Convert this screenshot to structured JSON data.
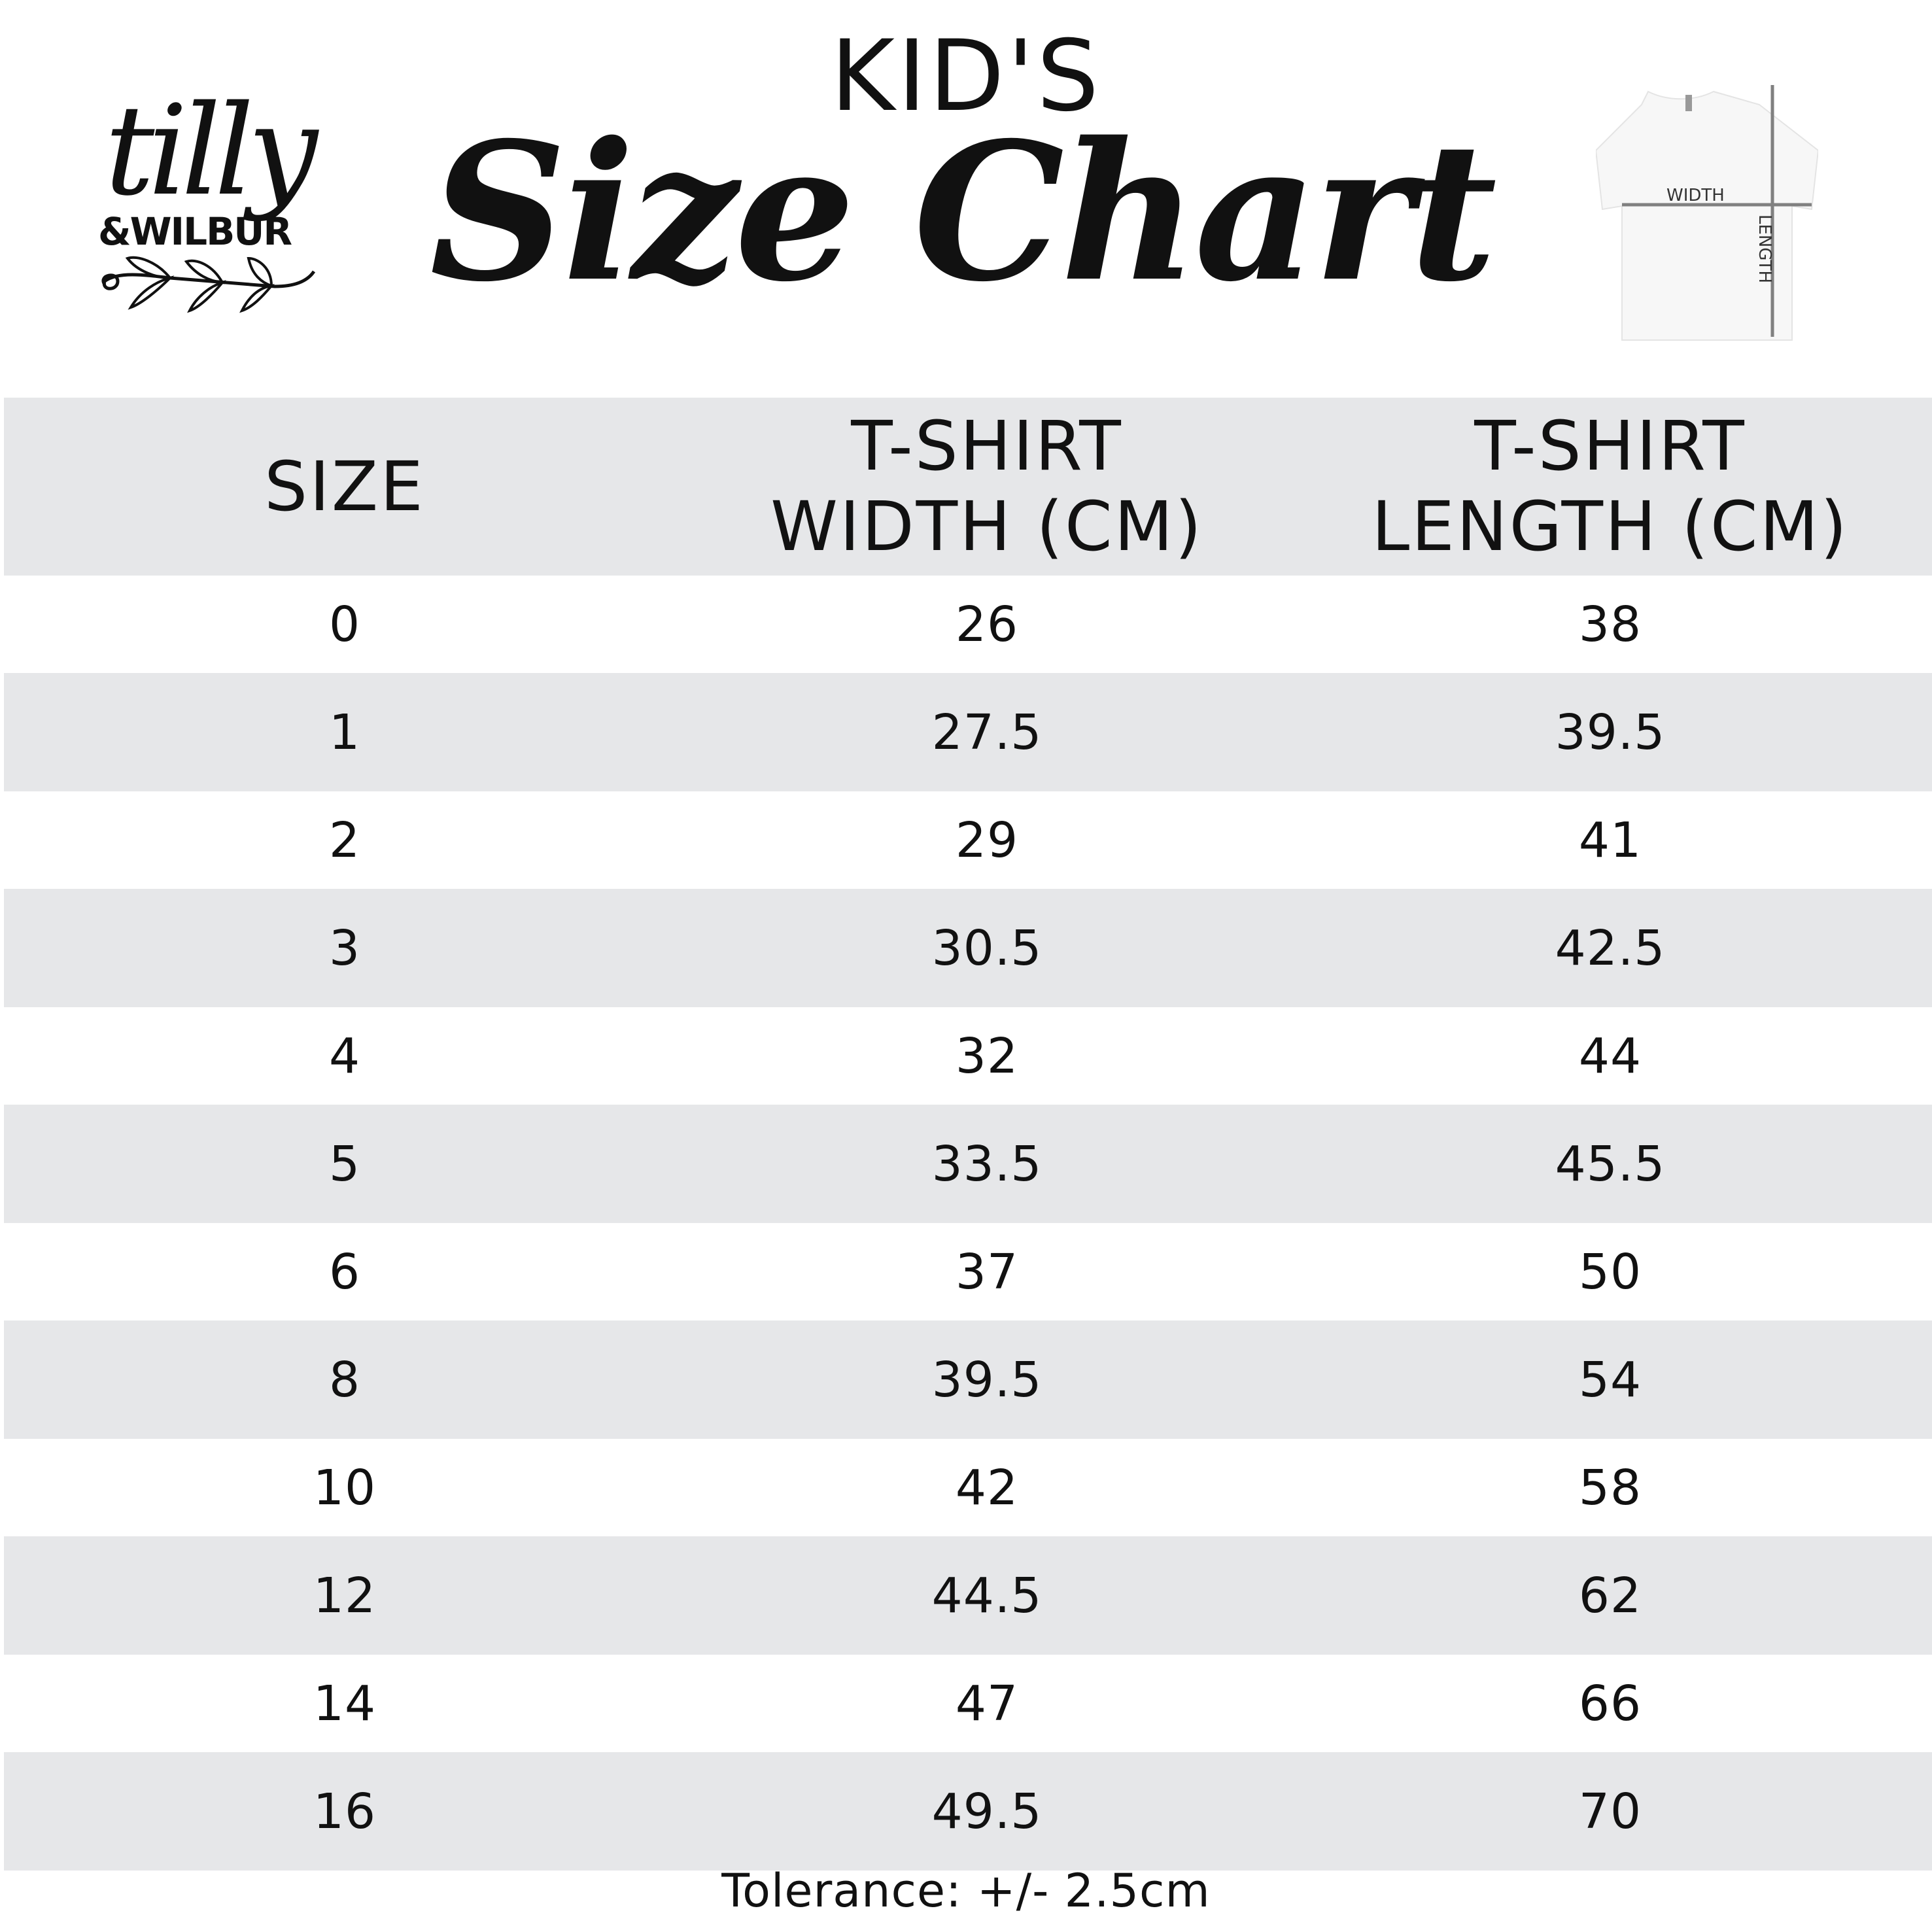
{
  "header": {
    "title": "KID'S",
    "subtitle": "Size Chart"
  },
  "logo": {
    "line1": "tilly",
    "line2": "&WILBUR"
  },
  "diagram": {
    "width_label": "WIDTH",
    "length_label": "LENGTH"
  },
  "table": {
    "columns": [
      "SIZE",
      "T-SHIRT\nWIDTH (CM)",
      "T-SHIRT\nLENGTH (CM)"
    ],
    "col_line1": [
      "SIZE",
      "T-SHIRT",
      "T-SHIRT"
    ],
    "col_line2": [
      "",
      "WIDTH (CM)",
      "LENGTH (CM)"
    ],
    "rows": [
      [
        "0",
        "26",
        "38"
      ],
      [
        "1",
        "27.5",
        "39.5"
      ],
      [
        "2",
        "29",
        "41"
      ],
      [
        "3",
        "30.5",
        "42.5"
      ],
      [
        "4",
        "32",
        "44"
      ],
      [
        "5",
        "33.5",
        "45.5"
      ],
      [
        "6",
        "37",
        "50"
      ],
      [
        "8",
        "39.5",
        "54"
      ],
      [
        "10",
        "42",
        "58"
      ],
      [
        "12",
        "44.5",
        "62"
      ],
      [
        "14",
        "47",
        "66"
      ],
      [
        "16",
        "49.5",
        "70"
      ]
    ]
  },
  "footer": {
    "tolerance": "Tolerance: +/- 2.5cm"
  },
  "colors": {
    "band": "#e6e7e9",
    "text": "#111111",
    "measure_line": "#808080"
  }
}
